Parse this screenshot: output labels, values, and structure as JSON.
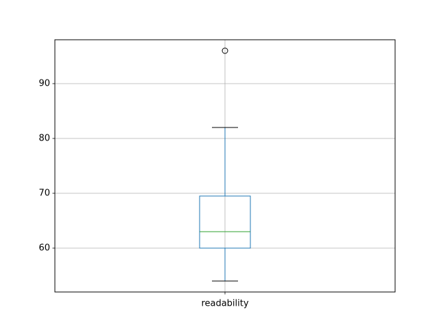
{
  "chart_data": {
    "type": "box",
    "categories": [
      "readability"
    ],
    "boxes": [
      {
        "whislo": 54,
        "q1": 60,
        "med": 63,
        "q3": 69.5,
        "whishi": 82,
        "fliers": [
          96
        ]
      }
    ],
    "box_color": "#1f77b4",
    "median_color": "#2ca02c",
    "ylim": [
      52,
      98
    ],
    "yticks": [
      60,
      70,
      80,
      90
    ],
    "grid": true
  }
}
